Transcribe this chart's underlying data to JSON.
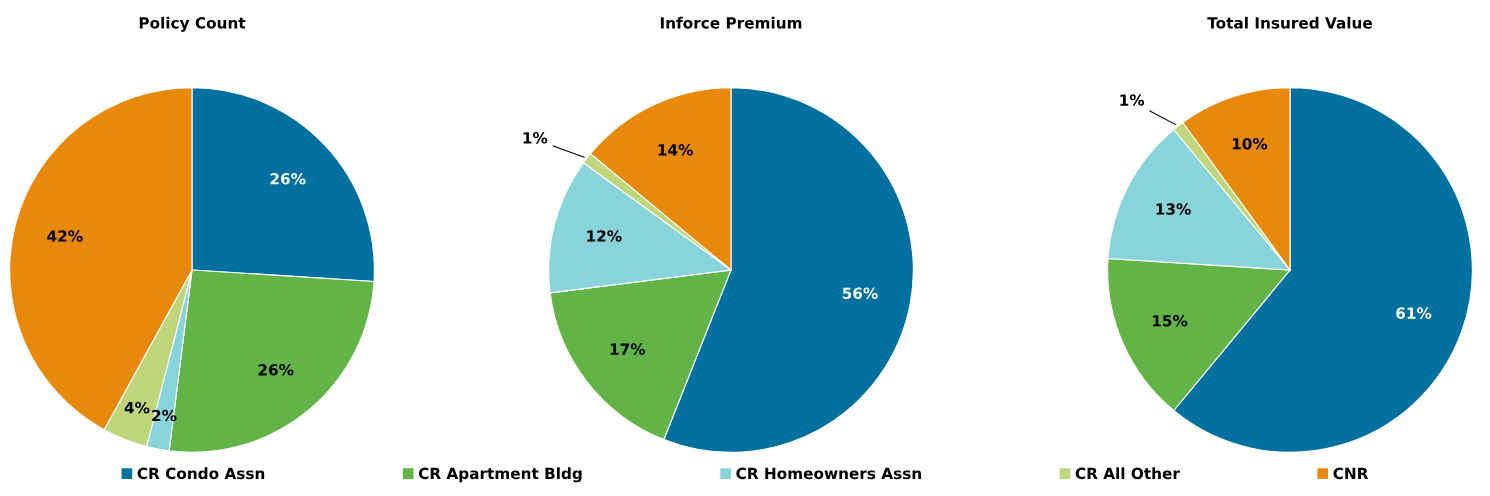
{
  "chart_data": [
    {
      "type": "pie",
      "title": "Policy Count",
      "categories": [
        "CR Condo Assn",
        "CR Apartment Bldg",
        "CR Homeowners Assn",
        "CR All Other",
        "CNR"
      ],
      "values": [
        26,
        26,
        2,
        4,
        42
      ],
      "value_labels": [
        "26%",
        "26%",
        "2%",
        "4%",
        "42%"
      ],
      "colors": [
        "#0070a0",
        "#62b446",
        "#87d4da",
        "#bfd67a",
        "#e8890c"
      ],
      "legend": "bottom"
    },
    {
      "type": "pie",
      "title": "Inforce Premium",
      "values": [
        56,
        17,
        12,
        1,
        14
      ],
      "value_labels": [
        "56%",
        "17%",
        "12%",
        "1%",
        "14%"
      ],
      "colors": [
        "#0070a0",
        "#62b446",
        "#87d4da",
        "#bfd67a",
        "#e8890c"
      ]
    },
    {
      "type": "pie",
      "title": "Total Insured Value",
      "values": [
        61,
        15,
        13,
        1,
        10
      ],
      "value_labels": [
        "61%",
        "15%",
        "13%",
        "1%",
        "10%"
      ],
      "colors": [
        "#0070a0",
        "#62b446",
        "#87d4da",
        "#bfd67a",
        "#e8890c"
      ]
    }
  ]
}
